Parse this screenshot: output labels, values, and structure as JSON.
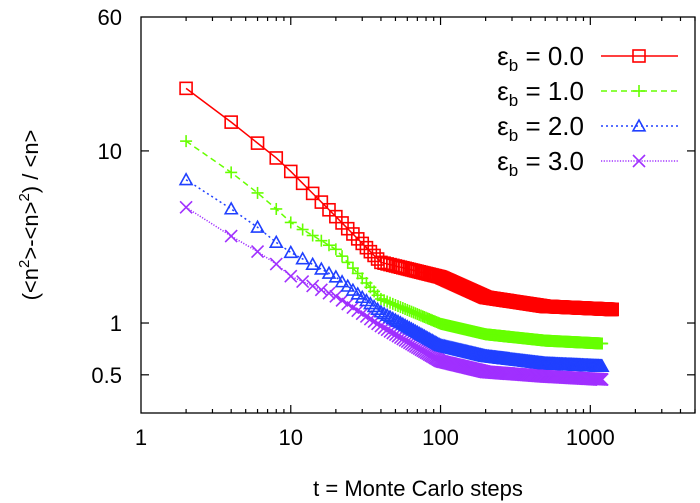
{
  "chart_data": {
    "type": "line",
    "title": "",
    "xlabel": "t = Monte Carlo steps",
    "ylabel_parts": [
      "(<n",
      "2",
      ">-<n>",
      "2",
      ") / <n>"
    ],
    "ylabel": "(<n^2>-<n>^2) / <n>",
    "xscale": "log",
    "yscale": "log",
    "xlim": [
      1,
      5000
    ],
    "ylim": [
      0.3,
      60
    ],
    "xticks": [
      {
        "value": 1,
        "label": "1"
      },
      {
        "value": 10,
        "label": "10"
      },
      {
        "value": 100,
        "label": "100"
      },
      {
        "value": 1000,
        "label": "1000"
      }
    ],
    "yticks": [
      {
        "value": 0.5,
        "label": "0.5"
      },
      {
        "value": 1,
        "label": "1"
      },
      {
        "value": 10,
        "label": "10"
      },
      {
        "value": 60,
        "label": "60"
      }
    ],
    "grid": false,
    "legend_position": "top-right",
    "sampling": {
      "t_start": 2,
      "t_step": 2
    },
    "series": [
      {
        "name": "εb = 0.0",
        "legend_symbol": "ε",
        "legend_sub": "b",
        "legend_value": " = 0.0",
        "color": "#ff0000",
        "dash": "solid",
        "marker": "square",
        "t_end": 1400,
        "x": [
          2,
          4,
          6,
          8,
          10,
          20,
          40,
          100,
          200,
          500,
          1400
        ],
        "y": [
          23.1,
          14.7,
          11.1,
          9.1,
          7.6,
          4.15,
          2.25,
          1.85,
          1.41,
          1.25,
          1.2
        ]
      },
      {
        "name": "εb = 1.0",
        "legend_symbol": "ε",
        "legend_sub": "b",
        "legend_value": " = 1.0",
        "color": "#66ff00",
        "dash": "dashed",
        "marker": "plus",
        "t_end": 1200,
        "x": [
          2,
          4,
          6,
          8,
          10,
          20,
          40,
          100,
          200,
          500,
          1200
        ],
        "y": [
          11.4,
          7.5,
          5.7,
          4.6,
          3.84,
          2.68,
          1.38,
          0.99,
          0.86,
          0.79,
          0.76
        ]
      },
      {
        "name": "εb = 2.0",
        "legend_symbol": "ε",
        "legend_sub": "b",
        "legend_value": " = 2.0",
        "color": "#2040ff",
        "dash": "dotted",
        "marker": "triangle",
        "t_end": 1200,
        "x": [
          2,
          4,
          6,
          8,
          10,
          20,
          40,
          100,
          200,
          500,
          1200
        ],
        "y": [
          6.8,
          4.6,
          3.6,
          2.94,
          2.57,
          1.85,
          1.16,
          0.74,
          0.64,
          0.58,
          0.56
        ]
      },
      {
        "name": "εb = 3.0",
        "legend_symbol": "ε",
        "legend_sub": "b",
        "legend_value": " = 3.0",
        "color": "#a030ff",
        "dash": "fine-dotted",
        "marker": "cross",
        "t_end": 1200,
        "x": [
          2,
          4,
          6,
          8,
          10,
          20,
          40,
          100,
          200,
          500,
          1200
        ],
        "y": [
          4.7,
          3.2,
          2.6,
          2.2,
          1.87,
          1.43,
          0.96,
          0.6,
          0.52,
          0.49,
          0.47
        ]
      }
    ]
  }
}
